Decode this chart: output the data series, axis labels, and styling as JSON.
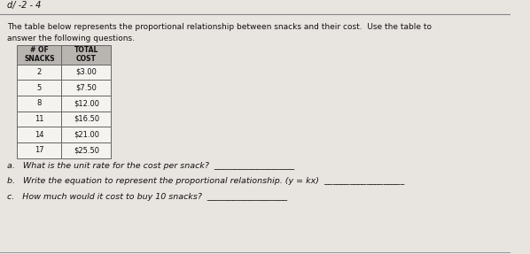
{
  "header_label": "d/ -2 - 4",
  "intro_text_line1": "The table below represents the proportional relationship between snacks and their cost.  Use the table to",
  "intro_text_line2": "answer the following questions.",
  "col1_header": "# OF\nSNACKS",
  "col2_header": "TOTAL\nCOST",
  "table_data": [
    [
      "2",
      "$3.00"
    ],
    [
      "5",
      "$7.50"
    ],
    [
      "8",
      "$12.00"
    ],
    [
      "11",
      "$16.50"
    ],
    [
      "14",
      "$21.00"
    ],
    [
      "17",
      "$25.50"
    ]
  ],
  "question_a": "a.   What is the unit rate for the cost per snack?  ___________________",
  "question_b": "b.   Write the equation to represent the proportional relationship. (y = kx)  ___________________",
  "question_c": "c.   How much would it cost to buy 10 snacks?  ___________________",
  "bg_color": "#e8e4e0",
  "table_header_bg": "#b8b4b0",
  "table_cell_bg": "#f5f3f0",
  "text_color": "#111111",
  "border_color": "#666666",
  "header_line_color": "#888888"
}
